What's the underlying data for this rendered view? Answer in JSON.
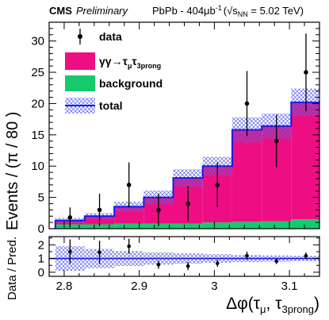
{
  "header": {
    "experiment": "CMS",
    "status": "Preliminary",
    "system_text": "PbPb - 404μb",
    "lumi_exp": "-1",
    "energy_prefix": "(√",
    "energy_sym": "s",
    "energy_sub": "NN",
    "energy_value": " = 5.02 TeV)"
  },
  "axes": {
    "y_title": "Events / (π / 80 )",
    "ratio_y_title": "Data / Pred.",
    "x_title_main": "Δφ(τ",
    "x_title_sub1": "μ",
    "x_title_mid": ", τ",
    "x_title_sub2": "3prong",
    "x_title_end": ")"
  },
  "legend": {
    "data": "data",
    "signal_main": "γγ→τ",
    "signal_sub1": "μ",
    "signal_mid": "τ",
    "signal_sub2": "3prong",
    "background": "background",
    "total": "total"
  },
  "colors": {
    "signal": "#EE0E83",
    "background": "#16C96C",
    "total": "#1A1AE6",
    "uncertainty": "#5B62E0",
    "data": "#000000"
  },
  "chart_data": [
    {
      "type": "bar",
      "stacked": true,
      "xlim": [
        2.78,
        3.14
      ],
      "ylim": [
        0,
        33
      ],
      "bin_edges": [
        2.7882,
        2.8274,
        2.8667,
        2.906,
        2.9452,
        2.9845,
        3.0238,
        3.0631,
        3.1023,
        3.1416
      ],
      "x_ticks": [
        2.8,
        2.9,
        3.0,
        3.1
      ],
      "x_tick_labels": [
        "2.8",
        "2.9",
        "3",
        "3.1"
      ],
      "y_ticks": [
        0,
        5,
        10,
        15,
        20,
        25,
        30
      ],
      "y_tick_labels": [
        "0",
        "5",
        "10",
        "15",
        "20",
        "25",
        "30"
      ],
      "series": [
        {
          "name": "background",
          "values": [
            0.7,
            0.7,
            0.8,
            0.8,
            0.8,
            1.0,
            1.1,
            1.2,
            1.5
          ]
        },
        {
          "name": "γγ→τμτ3prong",
          "values": [
            0.6,
            1.3,
            2.7,
            4.2,
            7.3,
            9.0,
            14.7,
            15.2,
            18.7
          ]
        }
      ],
      "total": [
        1.3,
        2.0,
        3.5,
        5.0,
        8.1,
        10.0,
        15.8,
        16.4,
        20.2
      ],
      "uncertainty": [
        0.4,
        0.5,
        0.8,
        1.1,
        1.4,
        1.5,
        2.0,
        2.0,
        2.2
      ],
      "data": [
        {
          "x": 2.8078,
          "y": 1.8,
          "err": 1.6
        },
        {
          "x": 2.8471,
          "y": 3.0,
          "err": 2.6
        },
        {
          "x": 2.8863,
          "y": 7.0,
          "err": 3.6
        },
        {
          "x": 2.9256,
          "y": 3.0,
          "err": 2.6
        },
        {
          "x": 2.9649,
          "y": 4.0,
          "err": 2.8
        },
        {
          "x": 3.0041,
          "y": 7.0,
          "err": 3.6
        },
        {
          "x": 3.0434,
          "y": 20.0,
          "err": 5.2
        },
        {
          "x": 3.0827,
          "y": 14.0,
          "err": 4.2
        },
        {
          "x": 3.122,
          "y": 25.0,
          "err": 6.2
        }
      ],
      "legend_position": "top-left"
    },
    {
      "type": "scatter",
      "ylim": [
        -0.3,
        2.6
      ],
      "y_ticks": [
        0,
        1,
        2
      ],
      "y_tick_labels": [
        "0",
        "1",
        "2"
      ],
      "reference_line": 1,
      "band_halfwidth": [
        0.9,
        0.7,
        0.55,
        0.45,
        0.38,
        0.32,
        0.26,
        0.23,
        0.2
      ],
      "ratio": [
        {
          "x": 2.8078,
          "y": 1.5,
          "err": 0.9
        },
        {
          "x": 2.8471,
          "y": 1.45,
          "err": 0.85
        },
        {
          "x": 2.8863,
          "y": 1.9,
          "err": 0.55
        },
        {
          "x": 2.9256,
          "y": 0.55,
          "err": 0.3
        },
        {
          "x": 2.9649,
          "y": 0.45,
          "err": 0.3
        },
        {
          "x": 3.0041,
          "y": 0.65,
          "err": 0.25
        },
        {
          "x": 3.0434,
          "y": 1.2,
          "err": 0.3
        },
        {
          "x": 3.0827,
          "y": 0.8,
          "err": 0.2
        },
        {
          "x": 3.122,
          "y": 1.2,
          "err": 0.25
        }
      ]
    }
  ]
}
